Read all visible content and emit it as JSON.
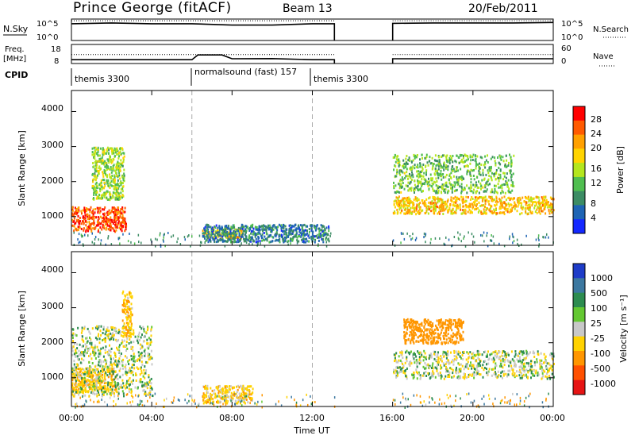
{
  "header": {
    "station": "Prince George (fitACF)",
    "beam": "Beam 13",
    "date": "20/Feb/2011"
  },
  "strips": {
    "nsky": {
      "label": "N.Sky",
      "ticks_left": [
        "10^5",
        "10^0"
      ],
      "ticks_right": [
        "10^5",
        "10^0"
      ],
      "right_label": "N.Search"
    },
    "freq": {
      "label_line1": "Freq.",
      "label_line2": "[MHz]",
      "ticks_left": [
        "18",
        "8"
      ],
      "ticks_right": [
        "60",
        "0"
      ],
      "right_label": "Nave"
    },
    "cpid": {
      "label": "CPID",
      "segments": [
        "themis 3300",
        "normalsound (fast) 157",
        "themis 3300"
      ],
      "segment_start_hours": [
        0,
        6,
        12
      ]
    }
  },
  "power_panel": {
    "ylabel": "Slant Range [km]",
    "yticks": [
      "4000",
      "3000",
      "2000",
      "1000"
    ],
    "colorbar_label": "Power [dB]",
    "colorbar_ticks": [
      "28",
      "24",
      "20",
      "16",
      "12",
      "8",
      "4"
    ],
    "colorbar_colors": [
      "#ff0000",
      "#ff5a00",
      "#ffa000",
      "#ffd400",
      "#b4e61e",
      "#50be50",
      "#3c8c64",
      "#1e64b4",
      "#1428ff"
    ]
  },
  "velocity_panel": {
    "ylabel": "Slant Range [km]",
    "yticks": [
      "4000",
      "3000",
      "2000",
      "1000"
    ],
    "colorbar_label": "Velocity [m s⁻¹]",
    "colorbar_ticks": [
      "1000",
      "500",
      "100",
      "25",
      "-25",
      "-100",
      "-500",
      "-1000"
    ],
    "colorbar_colors": [
      "#1e3cc8",
      "#3c78a0",
      "#2d8c50",
      "#64c832",
      "#c8c8c8",
      "#ffd200",
      "#ff9600",
      "#ff5000",
      "#e61414"
    ]
  },
  "x_axis": {
    "ticks": [
      "00:00",
      "04:00",
      "08:00",
      "12:00",
      "16:00",
      "20:00",
      "00:00"
    ],
    "label": "Time UT"
  },
  "chart_data": [
    {
      "type": "line",
      "title": "N.Sky / N.Search",
      "xlabel": "Time UT",
      "x_range_hours": [
        0,
        24
      ],
      "data_gap_hours": [
        13.1,
        16.0
      ],
      "ylim_log10": [
        0,
        5
      ],
      "series": [
        {
          "name": "N.Sky",
          "x": [
            0,
            2,
            4,
            6,
            8,
            10,
            12,
            13.1,
            16,
            18,
            20,
            22,
            24
          ],
          "values": [
            3.9,
            4.1,
            3.9,
            3.9,
            3.6,
            3.6,
            3.9,
            3.9,
            4.0,
            4.1,
            4.1,
            4.1,
            4.2
          ]
        },
        {
          "name": "N.Search",
          "x": [
            0,
            13.1,
            16,
            24
          ],
          "values": [
            4.6,
            4.6,
            4.6,
            4.6
          ]
        }
      ]
    },
    {
      "type": "line",
      "title": "Freq. / Nave",
      "xlabel": "Time UT",
      "x_range_hours": [
        0,
        24
      ],
      "data_gap_hours": [
        13.1,
        16.0
      ],
      "ylim": [
        8,
        18
      ],
      "series": [
        {
          "name": "Freq.",
          "x": [
            0,
            6,
            6.3,
            7.5,
            8,
            10,
            12,
            13.1,
            16,
            24
          ],
          "values": [
            10.0,
            10.0,
            12.5,
            12.5,
            10.5,
            10.6,
            10.0,
            10.0,
            10.5,
            10.5
          ]
        },
        {
          "name": "Nave",
          "x": [
            0,
            13.1,
            16,
            24
          ],
          "values": [
            28,
            28,
            28,
            28
          ]
        }
      ]
    },
    {
      "type": "heatmap",
      "title": "Power [dB]",
      "xlabel": "Time UT",
      "ylabel": "Slant Range [km]",
      "x_range_hours": [
        0,
        24
      ],
      "ylim": [
        180,
        4600
      ],
      "clim": [
        0,
        30
      ],
      "features": [
        {
          "t": [
            0.0,
            2.7
          ],
          "range": [
            600,
            1300
          ],
          "power": 27
        },
        {
          "t": [
            1.0,
            2.6
          ],
          "range": [
            1500,
            3000
          ],
          "power": 14
        },
        {
          "t": [
            6.5,
            8.5
          ],
          "range": [
            400,
            700
          ],
          "power": 20
        },
        {
          "t": [
            6.5,
            12.8
          ],
          "range": [
            300,
            800
          ],
          "power": 6
        },
        {
          "t": [
            16.0,
            24.0
          ],
          "range": [
            1100,
            1600
          ],
          "power": 20
        },
        {
          "t": [
            16.0,
            22.0
          ],
          "range": [
            1700,
            2800
          ],
          "power": 12
        }
      ]
    },
    {
      "type": "heatmap",
      "title": "Velocity [m s-1]",
      "xlabel": "Time UT",
      "ylabel": "Slant Range [km]",
      "x_range_hours": [
        0,
        24
      ],
      "ylim": [
        180,
        4600
      ],
      "clim": [
        -1000,
        1000
      ],
      "features": [
        {
          "t": [
            0.0,
            2.2
          ],
          "range": [
            600,
            1300
          ],
          "velocity": -80
        },
        {
          "t": [
            0.0,
            4.0
          ],
          "range": [
            500,
            2500
          ],
          "velocity": 0
        },
        {
          "t": [
            2.5,
            3.0
          ],
          "range": [
            2200,
            3500
          ],
          "velocity": -80
        },
        {
          "t": [
            6.5,
            9.0
          ],
          "range": [
            300,
            800
          ],
          "velocity": -60
        },
        {
          "t": [
            16.0,
            24.0
          ],
          "range": [
            1000,
            1800
          ],
          "velocity": 0
        },
        {
          "t": [
            16.5,
            19.5
          ],
          "range": [
            2000,
            2700
          ],
          "velocity": -300
        }
      ]
    }
  ]
}
